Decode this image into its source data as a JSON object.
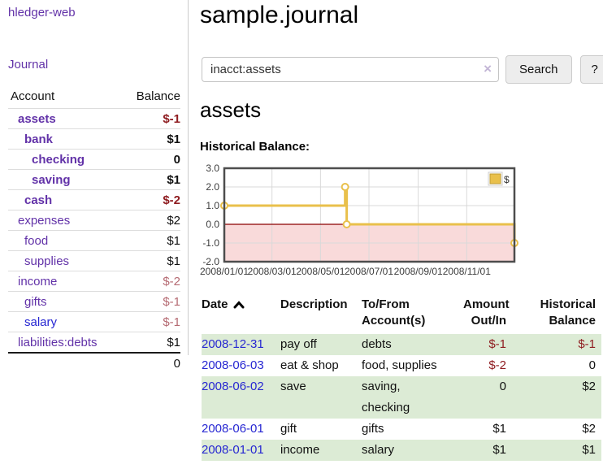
{
  "app": {
    "title": "hledger-web"
  },
  "sidebar": {
    "journal_link": "Journal",
    "accounts_table": {
      "headers": {
        "account": "Account",
        "balance": "Balance"
      },
      "rows": [
        {
          "name": "assets",
          "balance": "$-1"
        },
        {
          "name": "bank",
          "balance": "$1"
        },
        {
          "name": "checking",
          "balance": "0"
        },
        {
          "name": "saving",
          "balance": "$1"
        },
        {
          "name": "cash",
          "balance": "$-2"
        },
        {
          "name": "expenses",
          "balance": "$2"
        },
        {
          "name": "food",
          "balance": "$1"
        },
        {
          "name": "supplies",
          "balance": "$1"
        },
        {
          "name": "income",
          "balance": "$-2"
        },
        {
          "name": "gifts",
          "balance": "$-1"
        },
        {
          "name": "salary",
          "balance": "$-1"
        },
        {
          "name": "liabilities:debts",
          "balance": "$1"
        }
      ],
      "total": "0"
    }
  },
  "header": {
    "title": "sample.journal"
  },
  "search": {
    "query": "inacct:assets",
    "clear_icon": "×",
    "button_label": "Search",
    "help_label": "?"
  },
  "account_page": {
    "heading": "assets"
  },
  "chart_data": {
    "type": "line",
    "title": "Historical Balance:",
    "step": true,
    "series": [
      {
        "name": "$",
        "color": "#e9c04b",
        "marker_fill": "#ffffff",
        "points": [
          [
            "2008-01-01",
            1
          ],
          [
            "2008-06-01",
            2
          ],
          [
            "2008-06-03",
            0
          ],
          [
            "2008-12-31",
            -1
          ]
        ]
      }
    ],
    "x_ticks": [
      "2008/01/01",
      "2008/03/01",
      "2008/05/01",
      "2008/07/01",
      "2008/09/01",
      "2008/11/01"
    ],
    "y_ticks": [
      3.0,
      2.0,
      1.0,
      0.0,
      -1.0,
      -2.0
    ],
    "ylim": [
      -2,
      3
    ],
    "x_range": [
      "2008-01-01",
      "2008-12-31"
    ],
    "legend": {
      "label": "$",
      "position": "top-right",
      "swatch_border": "#c09c35"
    },
    "grid": true,
    "grid_color": "#d9d9d9",
    "frame_color": "#4d4d4d",
    "negative_fill": "#f9dada",
    "zero_line_color": "#8b0000"
  },
  "register": {
    "headers": {
      "date": "Date",
      "description": "Description",
      "accounts": "To/From Account(s)",
      "amount": "Amount Out/In",
      "balance": "Historical Balance"
    },
    "rows": [
      {
        "date": "2008-12-31",
        "description": "pay off",
        "accounts": "debts",
        "amount": "$-1",
        "balance": "$-1"
      },
      {
        "date": "2008-06-03",
        "description": "eat & shop",
        "accounts": "food, supplies",
        "amount": "$-2",
        "balance": "0"
      },
      {
        "date": "2008-06-02",
        "description": "save",
        "accounts": "saving,\nchecking",
        "amount": "0",
        "balance": "$2"
      },
      {
        "date": "2008-06-01",
        "description": "gift",
        "accounts": "gifts",
        "amount": "$1",
        "balance": "$2"
      },
      {
        "date": "2008-01-01",
        "description": "income",
        "accounts": "salary",
        "amount": "$1",
        "balance": "$1"
      }
    ]
  },
  "colors": {
    "link_purple": "#6232a8",
    "link_blue": "#2727d2",
    "negative_strong": "#8f1d21",
    "negative_muted": "#b56a72",
    "row_stripe_green": "#dcebd5"
  },
  "icons": {
    "sort_ascending": "chevron-up",
    "clear_search": "x-mark",
    "legend_marker": "square"
  }
}
